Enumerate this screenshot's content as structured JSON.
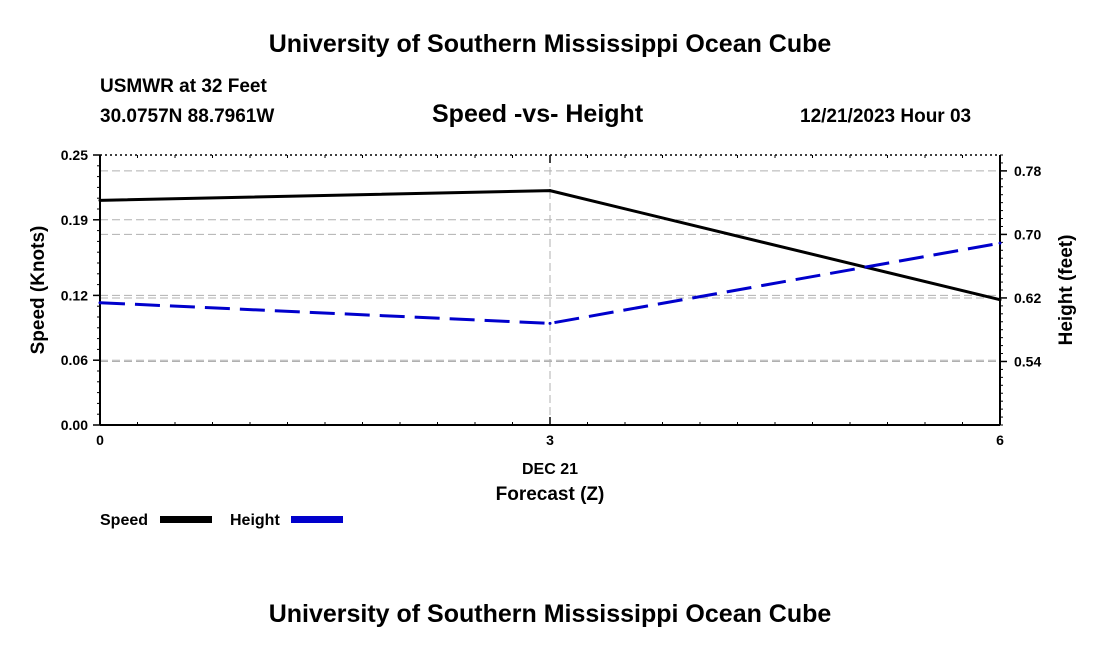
{
  "header": {
    "title": "University of Southern Mississippi Ocean Cube",
    "station": "USMWR at 32 Feet",
    "coordinates": "30.0757N  88.7961W",
    "subtitle": "Speed -vs- Height",
    "datetime": "12/21/2023 Hour 03"
  },
  "footer": {
    "title": "University of Southern Mississippi Ocean Cube"
  },
  "chart_data": {
    "type": "line",
    "title": "Speed -vs- Height",
    "xlabel": "Forecast (Z)",
    "xlabel_sub": "DEC 21",
    "x": [
      0,
      3,
      6
    ],
    "x_ticks": [
      "0",
      "3",
      "6"
    ],
    "xlim": [
      0,
      6
    ],
    "ylabel_left": "Speed (Knots)",
    "ylim_left": [
      0.0,
      0.25
    ],
    "y_ticks_left": [
      "0.00",
      "0.06",
      "0.12",
      "0.19",
      "0.25"
    ],
    "ylabel_right": "Height (feet)",
    "ylim_right": [
      0.46,
      0.8
    ],
    "y_ticks_right": [
      "0.54",
      "0.62",
      "0.70",
      "0.78"
    ],
    "grid": true,
    "legend_position": "bottom-left",
    "series": [
      {
        "name": "Speed",
        "axis": "left",
        "values": [
          0.208,
          0.217,
          0.116
        ],
        "color": "#000000",
        "style": "solid"
      },
      {
        "name": "Height",
        "axis": "right",
        "values": [
          0.614,
          0.588,
          0.689
        ],
        "color": "#0000cc",
        "style": "dashed"
      }
    ]
  }
}
